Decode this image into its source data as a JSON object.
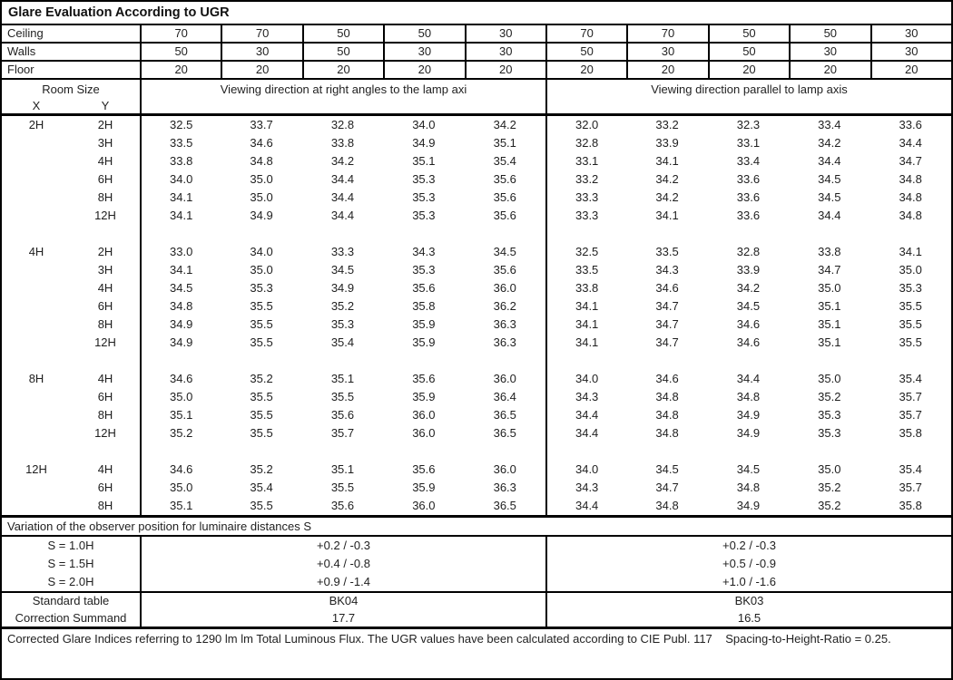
{
  "title": "Glare Evaluation According to UGR",
  "surface_rows": [
    {
      "label": "Ceiling",
      "values": [
        "70",
        "70",
        "50",
        "50",
        "30",
        "70",
        "70",
        "50",
        "50",
        "30"
      ]
    },
    {
      "label": "Walls",
      "values": [
        "50",
        "30",
        "50",
        "30",
        "30",
        "50",
        "30",
        "50",
        "30",
        "30"
      ]
    },
    {
      "label": "Floor",
      "values": [
        "20",
        "20",
        "20",
        "20",
        "20",
        "20",
        "20",
        "20",
        "20",
        "20"
      ]
    }
  ],
  "header": {
    "room_size": "Room Size",
    "x": "X",
    "y": "Y",
    "left_group": "Viewing direction at right angles to the lamp axi",
    "right_group": "Viewing direction parallel to lamp axis"
  },
  "ugr_table": {
    "blocks": [
      {
        "x": "2H",
        "rows": [
          {
            "y": "2H",
            "values": [
              "32.5",
              "33.7",
              "32.8",
              "34.0",
              "34.2",
              "32.0",
              "33.2",
              "32.3",
              "33.4",
              "33.6"
            ]
          },
          {
            "y": "3H",
            "values": [
              "33.5",
              "34.6",
              "33.8",
              "34.9",
              "35.1",
              "32.8",
              "33.9",
              "33.1",
              "34.2",
              "34.4"
            ]
          },
          {
            "y": "4H",
            "values": [
              "33.8",
              "34.8",
              "34.2",
              "35.1",
              "35.4",
              "33.1",
              "34.1",
              "33.4",
              "34.4",
              "34.7"
            ]
          },
          {
            "y": "6H",
            "values": [
              "34.0",
              "35.0",
              "34.4",
              "35.3",
              "35.6",
              "33.2",
              "34.2",
              "33.6",
              "34.5",
              "34.8"
            ]
          },
          {
            "y": "8H",
            "values": [
              "34.1",
              "35.0",
              "34.4",
              "35.3",
              "35.6",
              "33.3",
              "34.2",
              "33.6",
              "34.5",
              "34.8"
            ]
          },
          {
            "y": "12H",
            "values": [
              "34.1",
              "34.9",
              "34.4",
              "35.3",
              "35.6",
              "33.3",
              "34.1",
              "33.6",
              "34.4",
              "34.8"
            ]
          }
        ]
      },
      {
        "x": "4H",
        "rows": [
          {
            "y": "2H",
            "values": [
              "33.0",
              "34.0",
              "33.3",
              "34.3",
              "34.5",
              "32.5",
              "33.5",
              "32.8",
              "33.8",
              "34.1"
            ]
          },
          {
            "y": "3H",
            "values": [
              "34.1",
              "35.0",
              "34.5",
              "35.3",
              "35.6",
              "33.5",
              "34.3",
              "33.9",
              "34.7",
              "35.0"
            ]
          },
          {
            "y": "4H",
            "values": [
              "34.5",
              "35.3",
              "34.9",
              "35.6",
              "36.0",
              "33.8",
              "34.6",
              "34.2",
              "35.0",
              "35.3"
            ]
          },
          {
            "y": "6H",
            "values": [
              "34.8",
              "35.5",
              "35.2",
              "35.8",
              "36.2",
              "34.1",
              "34.7",
              "34.5",
              "35.1",
              "35.5"
            ]
          },
          {
            "y": "8H",
            "values": [
              "34.9",
              "35.5",
              "35.3",
              "35.9",
              "36.3",
              "34.1",
              "34.7",
              "34.6",
              "35.1",
              "35.5"
            ]
          },
          {
            "y": "12H",
            "values": [
              "34.9",
              "35.5",
              "35.4",
              "35.9",
              "36.3",
              "34.1",
              "34.7",
              "34.6",
              "35.1",
              "35.5"
            ]
          }
        ]
      },
      {
        "x": "8H",
        "rows": [
          {
            "y": "4H",
            "values": [
              "34.6",
              "35.2",
              "35.1",
              "35.6",
              "36.0",
              "34.0",
              "34.6",
              "34.4",
              "35.0",
              "35.4"
            ]
          },
          {
            "y": "6H",
            "values": [
              "35.0",
              "35.5",
              "35.5",
              "35.9",
              "36.4",
              "34.3",
              "34.8",
              "34.8",
              "35.2",
              "35.7"
            ]
          },
          {
            "y": "8H",
            "values": [
              "35.1",
              "35.5",
              "35.6",
              "36.0",
              "36.5",
              "34.4",
              "34.8",
              "34.9",
              "35.3",
              "35.7"
            ]
          },
          {
            "y": "12H",
            "values": [
              "35.2",
              "35.5",
              "35.7",
              "36.0",
              "36.5",
              "34.4",
              "34.8",
              "34.9",
              "35.3",
              "35.8"
            ]
          }
        ]
      },
      {
        "x": "12H",
        "rows": [
          {
            "y": "4H",
            "values": [
              "34.6",
              "35.2",
              "35.1",
              "35.6",
              "36.0",
              "34.0",
              "34.5",
              "34.5",
              "35.0",
              "35.4"
            ]
          },
          {
            "y": "6H",
            "values": [
              "35.0",
              "35.4",
              "35.5",
              "35.9",
              "36.3",
              "34.3",
              "34.7",
              "34.8",
              "35.2",
              "35.7"
            ]
          },
          {
            "y": "8H",
            "values": [
              "35.1",
              "35.5",
              "35.6",
              "36.0",
              "36.5",
              "34.4",
              "34.8",
              "34.9",
              "35.2",
              "35.8"
            ]
          }
        ]
      }
    ]
  },
  "variation": {
    "header": "Variation of the observer position for luminaire distances S",
    "rows": [
      {
        "label": "S = 1.0H",
        "left": "+0.2 / -0.3",
        "right": "+0.2 / -0.3"
      },
      {
        "label": "S = 1.5H",
        "left": "+0.4 / -0.8",
        "right": "+0.5 / -0.9"
      },
      {
        "label": "S = 2.0H",
        "left": "+0.9 / -1.4",
        "right": "+1.0 / -1.6"
      }
    ]
  },
  "summary": {
    "rows": [
      {
        "label": "Standard table",
        "left": "BK04",
        "right": "BK03"
      },
      {
        "label": "Correction Summand",
        "left": "17.7",
        "right": "16.5"
      }
    ]
  },
  "footer": {
    "note": "Corrected Glare Indices referring to 1290 lm lm Total Luminous Flux. The UGR values have been calculated according to CIE Publ. 117    Spacing-to-Height-Ratio = 0.25."
  }
}
